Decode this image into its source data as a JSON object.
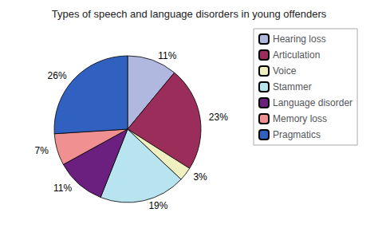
{
  "chart_data": {
    "type": "pie",
    "title": "Types of speech and language disorders in young offenders",
    "categories": [
      "Hearing loss",
      "Articulation",
      "Voice",
      "Stammer",
      "Language disorder",
      "Memory loss",
      "Pragmatics"
    ],
    "values": [
      11,
      23,
      3,
      19,
      11,
      7,
      26
    ],
    "value_labels": [
      "11%",
      "23%",
      "3%",
      "19%",
      "11%",
      "7%",
      "26%"
    ],
    "colors": [
      "#b0b8e0",
      "#9b2d5a",
      "#f0f0c0",
      "#b8e4f0",
      "#6b2080",
      "#f09090",
      "#3060c0"
    ],
    "data_labels": true,
    "legend": "upper right"
  }
}
